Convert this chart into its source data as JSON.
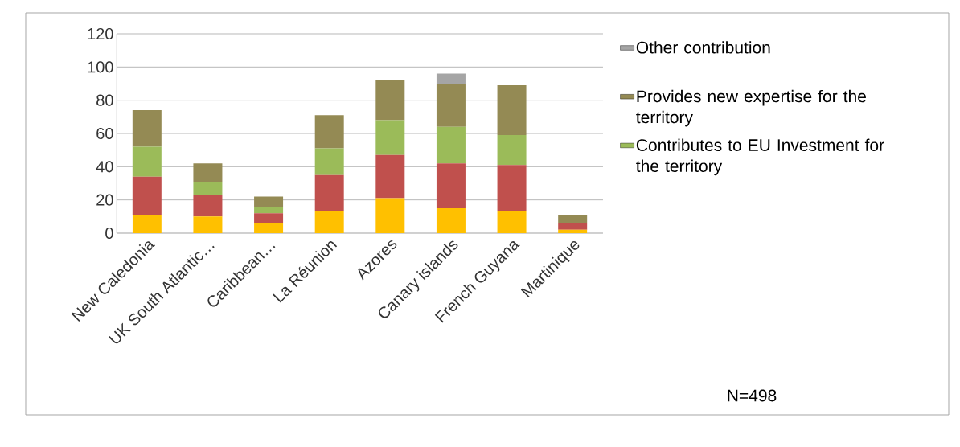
{
  "chart_data": {
    "type": "bar",
    "stacked": true,
    "categories": [
      "New Caledonia",
      "UK South Atlantic…",
      "Caribbean…",
      "La Réunion",
      "Azores",
      "Canary islands",
      "French Guyana",
      "Martinique"
    ],
    "series": [
      {
        "color": "#ffc000",
        "values": [
          11,
          10,
          6,
          13,
          21,
          15,
          13,
          2
        ]
      },
      {
        "color": "#c0504d",
        "values": [
          23,
          13,
          6,
          22,
          26,
          27,
          28,
          4
        ]
      },
      {
        "name": "Contributes to EU Investment for the territory",
        "color": "#9bbb59",
        "values": [
          18,
          8,
          4,
          16,
          21,
          22,
          18,
          0
        ]
      },
      {
        "name": "Provides new expertise for the territory",
        "color": "#948a54",
        "values": [
          22,
          11,
          6,
          20,
          24,
          26,
          30,
          5
        ]
      },
      {
        "name": "Other contribution",
        "color": "#a5a5a5",
        "values": [
          0,
          0,
          0,
          0,
          0,
          6,
          0,
          0
        ]
      }
    ],
    "ylim": [
      0,
      120
    ],
    "yticks": [
      0,
      20,
      40,
      60,
      80,
      100,
      120
    ],
    "grid": "y",
    "legend": "right",
    "annotations": [
      "N=498"
    ]
  }
}
